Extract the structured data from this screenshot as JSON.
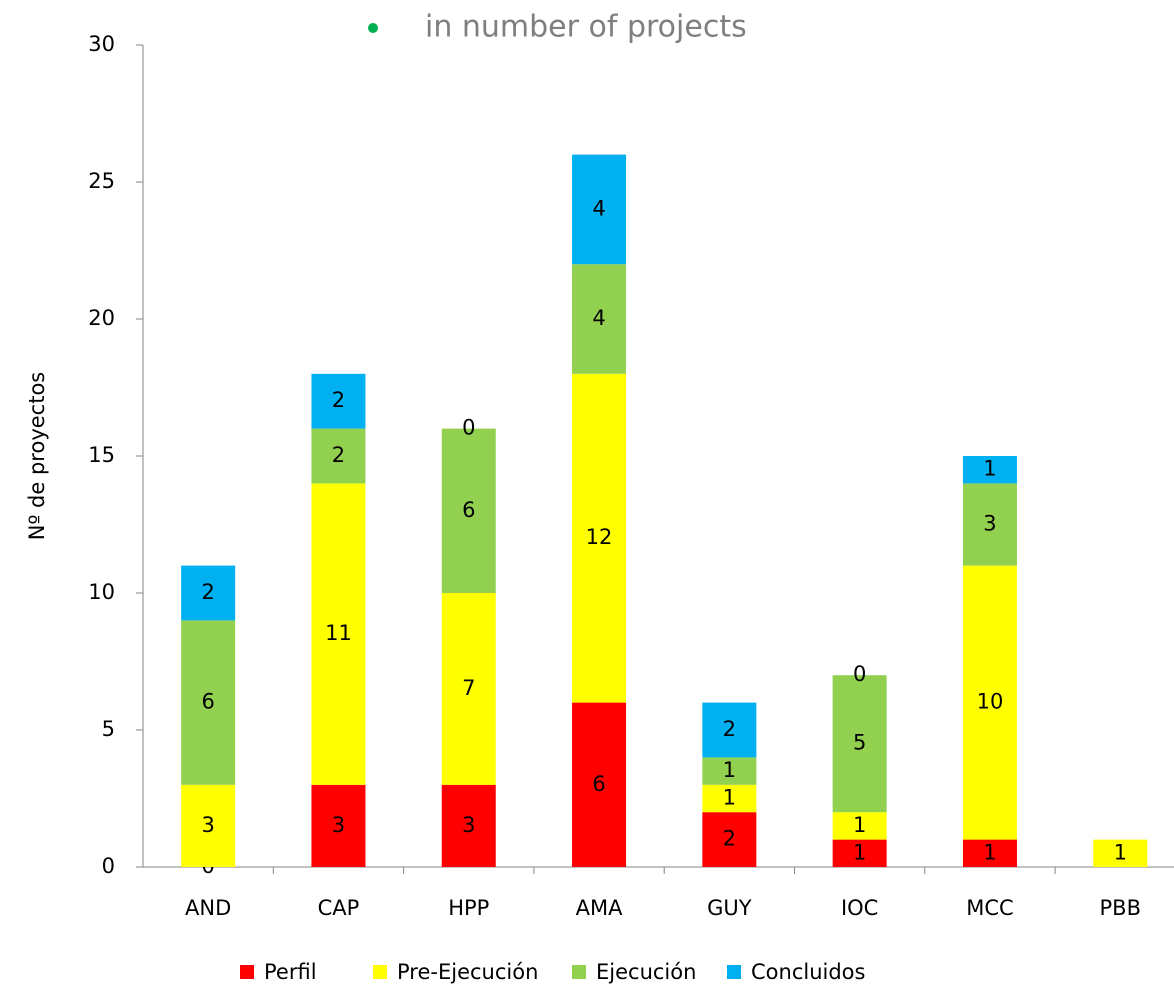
{
  "chart_data": {
    "type": "stacked_bar",
    "title": "in number of projects",
    "y_label": "Nº de proyectos",
    "categories": [
      "AND",
      "CAP",
      "HPP",
      "AMA",
      "GUY",
      "IOC",
      "MCC",
      "PBB"
    ],
    "series": [
      {
        "name": "Perfil",
        "color": "#ff0000",
        "values": [
          0,
          3,
          3,
          6,
          2,
          1,
          1,
          null
        ]
      },
      {
        "name": "Pre-Ejecución",
        "color": "#ffff00",
        "values": [
          3,
          11,
          7,
          12,
          1,
          1,
          10,
          1
        ]
      },
      {
        "name": "Ejecución",
        "color": "#92d050",
        "values": [
          6,
          2,
          6,
          4,
          1,
          5,
          3,
          null
        ]
      },
      {
        "name": "Concluidos",
        "color": "#00b0f0",
        "values": [
          2,
          2,
          0,
          4,
          2,
          0,
          1,
          null
        ]
      }
    ],
    "ylim": [
      0,
      30
    ],
    "yticks": [
      0,
      5,
      10,
      15,
      20,
      25,
      30
    ],
    "grid": false,
    "legend": "bottom"
  }
}
